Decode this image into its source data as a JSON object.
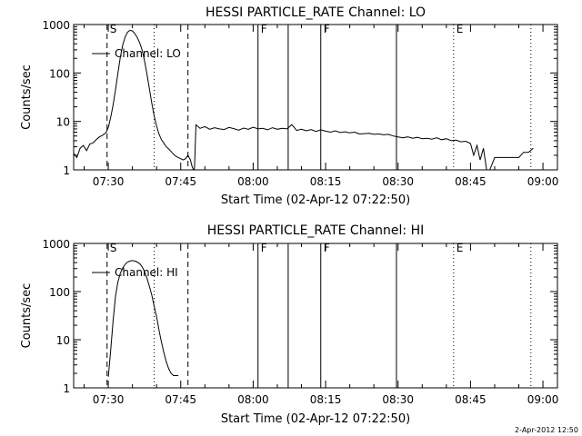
{
  "chart_data": [
    {
      "type": "line",
      "title": "HESSI PARTICLE_RATE Channel: LO",
      "xlabel": "Start Time (02-Apr-12 07:22:50)",
      "ylabel": "Counts/sec",
      "yscale": "log",
      "ylim": [
        1,
        1000
      ],
      "xlim": [
        "07:22:50",
        "09:03:00"
      ],
      "xticks": [
        "07:30",
        "07:45",
        "08:00",
        "08:15",
        "08:30",
        "08:45",
        "09:00"
      ],
      "yticks": [
        "1",
        "10",
        "100",
        "1000"
      ],
      "legend": "Channel: LO",
      "legend_position": "top-left",
      "grid": false,
      "markers": [
        {
          "time": "07:29:45",
          "style": "dashed",
          "label": "S"
        },
        {
          "time": "07:39:30",
          "style": "dotted",
          "label": ""
        },
        {
          "time": "07:46:30",
          "style": "dashed",
          "label": ""
        },
        {
          "time": "08:01:00",
          "style": "solid",
          "label": "F"
        },
        {
          "time": "08:07:15",
          "style": "solid",
          "label": ""
        },
        {
          "time": "08:14:00",
          "style": "solid",
          "label": "F"
        },
        {
          "time": "08:29:40",
          "style": "solid",
          "label": ""
        },
        {
          "time": "08:41:30",
          "style": "dotted",
          "label": "E"
        },
        {
          "time": "08:57:30",
          "style": "dotted",
          "label": ""
        }
      ],
      "series": [
        {
          "segments": [
            {
              "times": [
                "07:22:50",
                "07:23:30",
                "07:24:10",
                "07:24:50",
                "07:25:30",
                "07:26:10",
                "07:26:50",
                "07:27:30",
                "07:28:10",
                "07:28:50",
                "07:29:30",
                "07:30:00",
                "07:30:30",
                "07:31:00",
                "07:31:30",
                "07:32:00",
                "07:32:30",
                "07:33:00",
                "07:33:30",
                "07:34:00",
                "07:34:30",
                "07:35:00",
                "07:35:30",
                "07:36:00",
                "07:36:30",
                "07:37:00",
                "07:37:30",
                "07:38:00",
                "07:38:30",
                "07:39:00",
                "07:39:30",
                "07:40:00",
                "07:40:30",
                "07:41:00",
                "07:41:30",
                "07:42:00",
                "07:42:30",
                "07:43:00",
                "07:43:30",
                "07:44:00",
                "07:44:30",
                "07:45:00",
                "07:45:30",
                "07:46:00",
                "07:46:30",
                "07:47:00",
                "07:47:20",
                "07:47:40"
              ],
              "values": [
                2.2,
                1.8,
                2.8,
                3.2,
                2.5,
                3.4,
                3.6,
                4.2,
                4.8,
                5.2,
                5.8,
                7.5,
                12,
                22,
                45,
                100,
                210,
                380,
                560,
                700,
                760,
                740,
                650,
                540,
                420,
                300,
                180,
                95,
                48,
                24,
                13,
                8,
                5.5,
                4.2,
                3.6,
                3.0,
                2.7,
                2.4,
                2.1,
                1.9,
                1.8,
                1.7,
                1.6,
                1.7,
                2.0,
                1.6,
                1.2,
                1.0
              ]
            },
            {
              "times": [
                "07:47:50",
                "07:48:10",
                "07:49:00",
                "07:50:00",
                "07:51:00",
                "07:52:00",
                "07:53:00",
                "07:54:00",
                "07:55:00",
                "07:56:00",
                "07:57:00",
                "07:58:00",
                "07:59:00",
                "08:00:00",
                "08:01:00",
                "08:02:00",
                "08:03:00",
                "08:04:00",
                "08:05:00",
                "08:06:00",
                "08:07:00",
                "08:08:00",
                "08:09:00",
                "08:10:00",
                "08:11:00",
                "08:12:00",
                "08:13:00",
                "08:14:00",
                "08:15:00",
                "08:16:00",
                "08:17:00",
                "08:18:00",
                "08:19:00",
                "08:20:00",
                "08:21:00",
                "08:22:00",
                "08:23:00",
                "08:24:00",
                "08:25:00",
                "08:26:00",
                "08:27:00",
                "08:28:00",
                "08:29:00",
                "08:30:00",
                "08:31:00",
                "08:32:00",
                "08:33:00",
                "08:34:00",
                "08:35:00",
                "08:36:00",
                "08:37:00",
                "08:38:00",
                "08:39:00",
                "08:40:00",
                "08:41:00",
                "08:42:00",
                "08:43:00",
                "08:44:00",
                "08:45:00",
                "08:45:40",
                "08:46:20",
                "08:47:00",
                "08:47:40",
                "08:48:20",
                "08:49:00",
                "08:50:00",
                "08:51:00",
                "08:52:00",
                "08:53:00",
                "08:54:00",
                "08:55:00",
                "08:56:00",
                "08:57:00",
                "08:58:00"
              ],
              "values": [
                1.0,
                8.5,
                7.2,
                7.8,
                6.9,
                7.4,
                7.0,
                6.8,
                7.5,
                7.1,
                6.6,
                7.3,
                6.9,
                7.6,
                7.0,
                7.2,
                6.7,
                7.4,
                6.9,
                7.2,
                7.0,
                8.6,
                6.5,
                6.9,
                6.4,
                6.8,
                6.2,
                6.7,
                6.3,
                6.0,
                6.4,
                5.9,
                6.1,
                5.8,
                6.0,
                5.5,
                5.6,
                5.7,
                5.4,
                5.5,
                5.3,
                5.4,
                5.0,
                4.8,
                4.6,
                4.8,
                4.5,
                4.7,
                4.4,
                4.5,
                4.3,
                4.6,
                4.2,
                4.4,
                4.0,
                4.1,
                3.8,
                3.9,
                3.5,
                2.0,
                3.2,
                1.6,
                2.8,
                1.0,
                1.0,
                1.8,
                1.8,
                1.8,
                1.8,
                1.8,
                1.8,
                2.3,
                2.3,
                2.8
              ]
            }
          ]
        }
      ]
    },
    {
      "type": "line",
      "title": "HESSI PARTICLE_RATE Channel: HI",
      "xlabel": "Start Time (02-Apr-12 07:22:50)",
      "ylabel": "Counts/sec",
      "yscale": "log",
      "ylim": [
        1,
        1000
      ],
      "xlim": [
        "07:22:50",
        "09:03:00"
      ],
      "xticks": [
        "07:30",
        "07:45",
        "08:00",
        "08:15",
        "08:30",
        "08:45",
        "09:00"
      ],
      "yticks": [
        "1",
        "10",
        "100",
        "1000"
      ],
      "legend": "Channel: HI",
      "legend_position": "top-left",
      "grid": false,
      "markers": [
        {
          "time": "07:29:45",
          "style": "dashed",
          "label": "S"
        },
        {
          "time": "07:39:30",
          "style": "dotted",
          "label": ""
        },
        {
          "time": "07:46:30",
          "style": "dashed",
          "label": ""
        },
        {
          "time": "08:01:00",
          "style": "solid",
          "label": "F"
        },
        {
          "time": "08:07:15",
          "style": "solid",
          "label": ""
        },
        {
          "time": "08:14:00",
          "style": "solid",
          "label": "F"
        },
        {
          "time": "08:29:40",
          "style": "solid",
          "label": ""
        },
        {
          "time": "08:41:30",
          "style": "dotted",
          "label": "E"
        },
        {
          "time": "08:57:30",
          "style": "dotted",
          "label": ""
        }
      ],
      "series": [
        {
          "segments": [
            {
              "times": [
                "07:30:00",
                "07:30:30",
                "07:31:00",
                "07:31:30",
                "07:32:00",
                "07:32:30",
                "07:33:00",
                "07:33:30",
                "07:34:00",
                "07:34:30",
                "07:35:00",
                "07:35:30",
                "07:36:00",
                "07:36:30",
                "07:37:00",
                "07:37:30",
                "07:38:00",
                "07:38:30",
                "07:39:00",
                "07:39:30",
                "07:40:00",
                "07:40:30",
                "07:41:00",
                "07:41:30",
                "07:42:00",
                "07:42:30",
                "07:43:00",
                "07:43:30",
                "07:44:00",
                "07:44:30"
              ],
              "values": [
                1.7,
                6,
                25,
                80,
                160,
                240,
                310,
                370,
                410,
                430,
                440,
                430,
                410,
                380,
                330,
                260,
                190,
                130,
                85,
                50,
                30,
                16,
                9,
                5.5,
                3.5,
                2.5,
                2.0,
                1.8,
                1.8,
                1.8
              ]
            }
          ]
        }
      ]
    }
  ],
  "footer": {
    "date_stamp": "2-Apr-2012 12:50"
  }
}
